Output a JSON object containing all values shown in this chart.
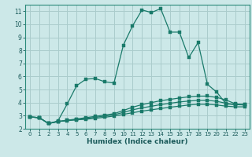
{
  "xlabel": "Humidex (Indice chaleur)",
  "background_color": "#cce8e8",
  "grid_color": "#aacccc",
  "line_color": "#1a7a6a",
  "xlim": [
    -0.5,
    23.5
  ],
  "ylim": [
    2,
    11.5
  ],
  "yticks": [
    2,
    3,
    4,
    5,
    6,
    7,
    8,
    9,
    10,
    11
  ],
  "xticks": [
    0,
    1,
    2,
    3,
    4,
    5,
    6,
    7,
    8,
    9,
    10,
    11,
    12,
    13,
    14,
    15,
    16,
    17,
    18,
    19,
    20,
    21,
    22,
    23
  ],
  "curves": [
    {
      "x": [
        0,
        1,
        2,
        3,
        4,
        5,
        6,
        7,
        8,
        9,
        10,
        11,
        12,
        13,
        14,
        15,
        16,
        17,
        18,
        19,
        20,
        21,
        22,
        23
      ],
      "y": [
        2.9,
        2.85,
        2.4,
        2.6,
        3.9,
        5.3,
        5.8,
        5.85,
        5.6,
        5.5,
        8.4,
        9.9,
        11.1,
        10.9,
        11.2,
        9.4,
        9.4,
        7.45,
        8.6,
        5.4,
        4.8,
        3.9,
        3.85,
        3.85
      ]
    },
    {
      "x": [
        0,
        1,
        2,
        3,
        4,
        5,
        6,
        7,
        8,
        9,
        10,
        11,
        12,
        13,
        14,
        15,
        16,
        17,
        18,
        19,
        20,
        21,
        22,
        23
      ],
      "y": [
        2.9,
        2.85,
        2.4,
        2.55,
        2.65,
        2.75,
        2.85,
        2.95,
        3.05,
        3.15,
        3.4,
        3.65,
        3.85,
        4.0,
        4.15,
        4.25,
        4.35,
        4.45,
        4.5,
        4.5,
        4.4,
        4.2,
        3.9,
        3.85
      ]
    },
    {
      "x": [
        0,
        1,
        2,
        3,
        4,
        5,
        6,
        7,
        8,
        9,
        10,
        11,
        12,
        13,
        14,
        15,
        16,
        17,
        18,
        19,
        20,
        21,
        22,
        23
      ],
      "y": [
        2.9,
        2.85,
        2.4,
        2.55,
        2.65,
        2.7,
        2.78,
        2.88,
        2.97,
        3.07,
        3.25,
        3.45,
        3.6,
        3.72,
        3.85,
        3.95,
        4.05,
        4.12,
        4.18,
        4.18,
        4.1,
        3.95,
        3.85,
        3.82
      ]
    },
    {
      "x": [
        0,
        1,
        2,
        3,
        4,
        5,
        6,
        7,
        8,
        9,
        10,
        11,
        12,
        13,
        14,
        15,
        16,
        17,
        18,
        19,
        20,
        21,
        22,
        23
      ],
      "y": [
        2.9,
        2.85,
        2.4,
        2.55,
        2.62,
        2.68,
        2.73,
        2.8,
        2.88,
        2.97,
        3.1,
        3.23,
        3.35,
        3.45,
        3.55,
        3.65,
        3.73,
        3.82,
        3.87,
        3.87,
        3.82,
        3.73,
        3.68,
        3.68
      ]
    }
  ]
}
